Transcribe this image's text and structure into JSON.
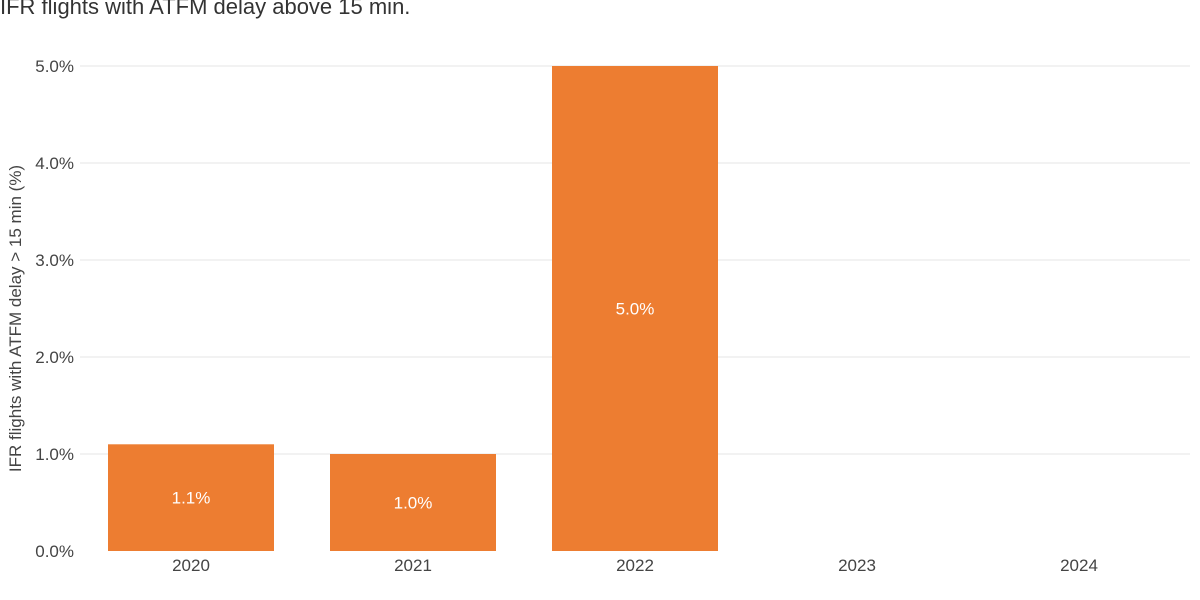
{
  "chart_data": {
    "type": "bar",
    "title": "IFR flights with ATFM delay above 15 min.",
    "xlabel": "",
    "ylabel": "IFR flights with ATFM delay > 15 min (%)",
    "categories": [
      "2020",
      "2021",
      "2022",
      "2023",
      "2024"
    ],
    "values": [
      1.1,
      1.0,
      5.0,
      null,
      null
    ],
    "data_labels": [
      "1.1%",
      "1.0%",
      "5.0%",
      "",
      ""
    ],
    "ylim": [
      0,
      5
    ],
    "yticks": [
      0,
      1,
      2,
      3,
      4,
      5
    ],
    "ytick_labels": [
      "0.0%",
      "1.0%",
      "2.0%",
      "3.0%",
      "4.0%",
      "5.0%"
    ],
    "grid": true,
    "legend": "none",
    "bar_color": "#ED7D31"
  }
}
